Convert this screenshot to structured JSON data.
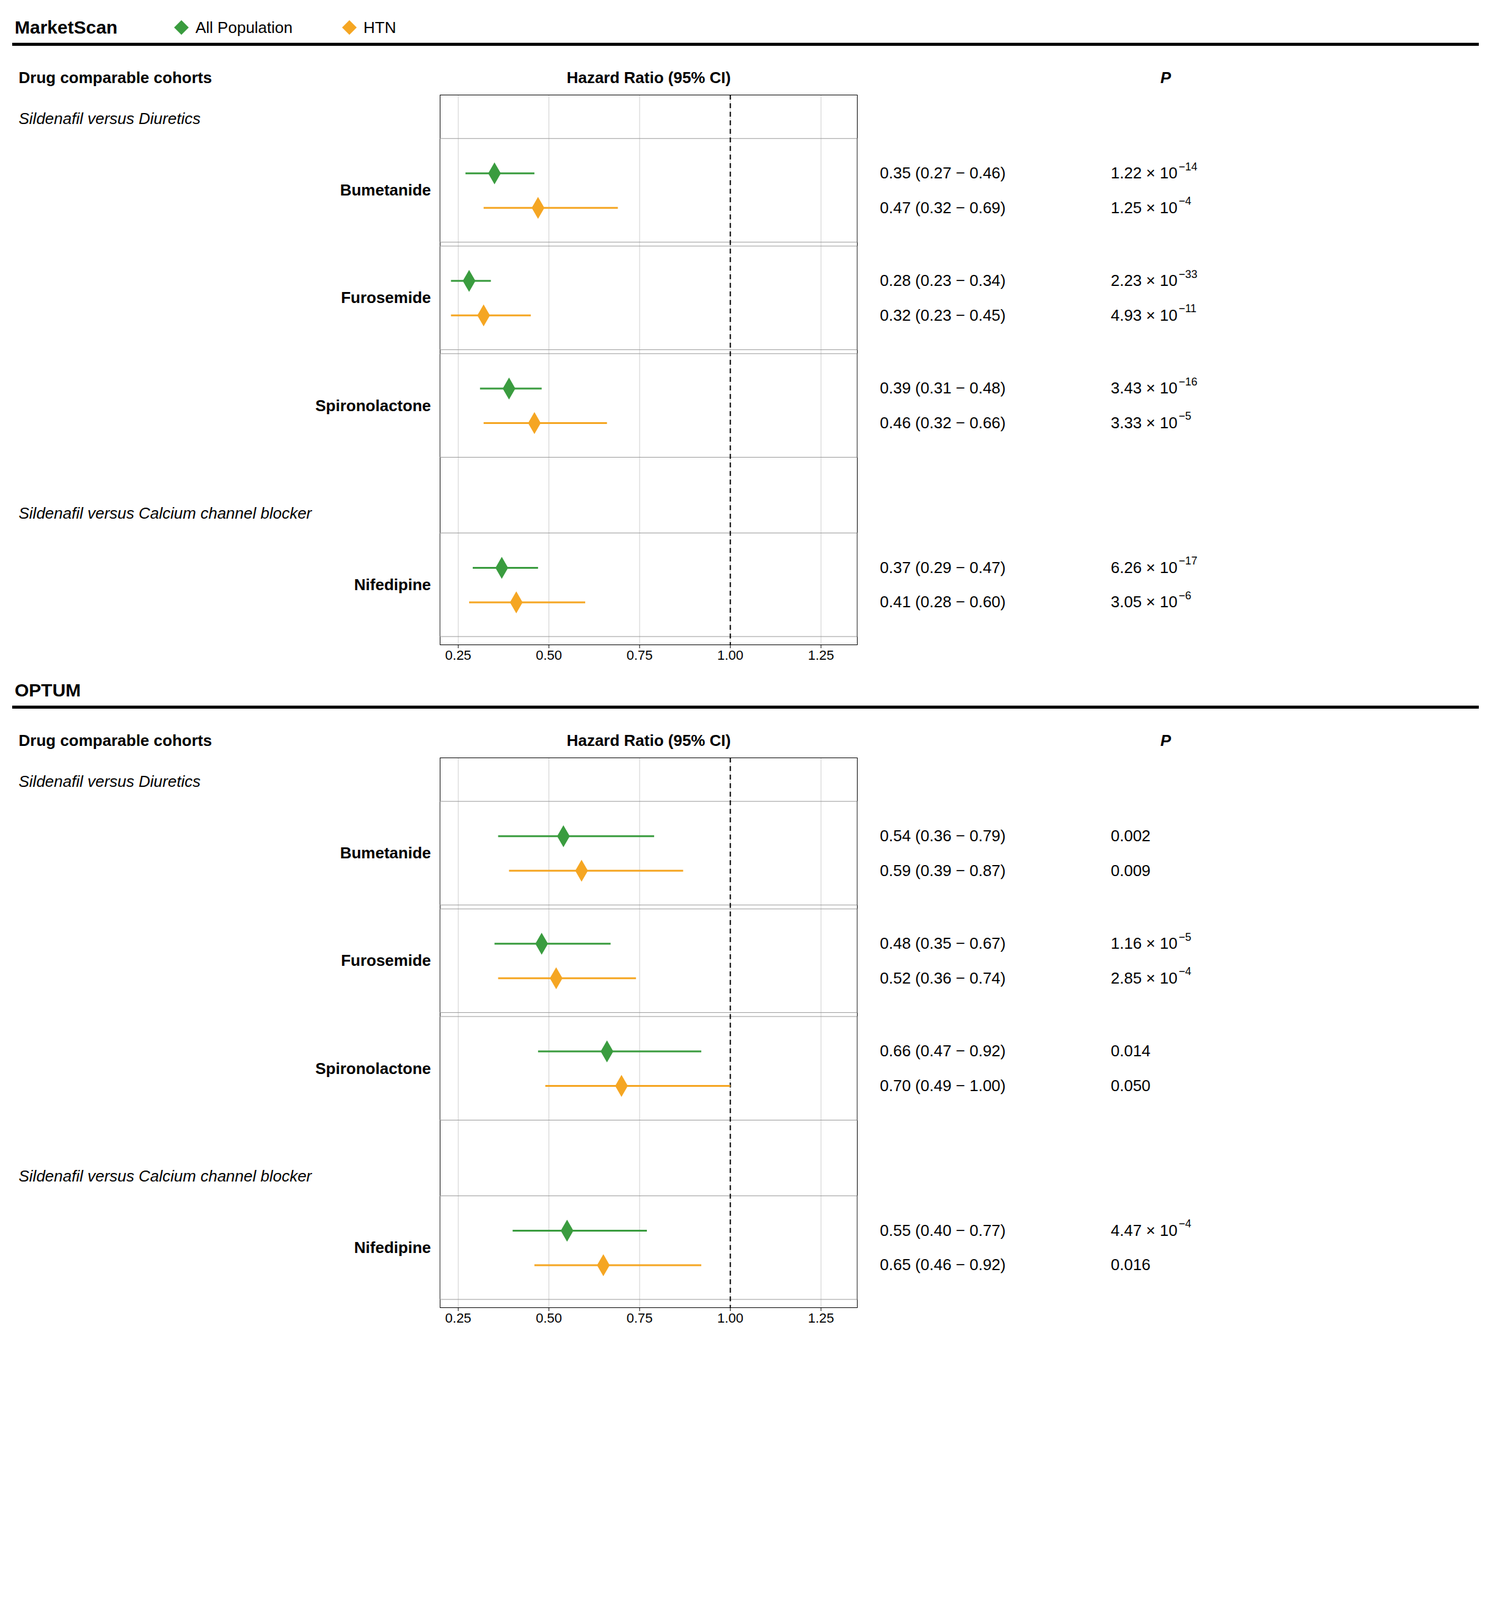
{
  "chart_data": [
    {
      "type": "forest",
      "title": "MarketScan",
      "legend": "top",
      "row_header": "Drug comparable cohorts",
      "xlabel": "Hazard Ratio (95% CI)",
      "p_header": "P",
      "xlim": [
        0.2,
        1.35
      ],
      "xticks": [
        0.25,
        {
          "value": 0.5,
          "label": "0.50"
        },
        0.75,
        {
          "value": 1.0,
          "label": "1.00"
        },
        1.25
      ],
      "grid": true,
      "reference_line": 1.0,
      "groups": [
        {
          "title": "Sildenafil versus Diuretics",
          "categories": [
            "Bumetanide",
            "Furosemide",
            "Spironolactone"
          ]
        },
        {
          "title": "Sildenafil versus Calcium channel blocker",
          "categories": [
            "Nifedipine"
          ]
        }
      ],
      "series": [
        {
          "name": "All Population",
          "color": "#3a9c3f",
          "marker": "diamond",
          "values": [
            0.35,
            0.28,
            0.39,
            0.37
          ],
          "ci_low": [
            0.27,
            0.23,
            0.31,
            0.29
          ],
          "ci_high": [
            0.46,
            0.34,
            0.48,
            0.47
          ],
          "value_labels": [
            "0.35 (0.27 − 0.46)",
            "0.28 (0.23 − 0.34)",
            "0.39 (0.31 − 0.48)",
            "0.37 (0.29 − 0.47)"
          ],
          "p_labels": [
            "1.22 × 10",
            "2.23 × 10",
            "3.43 × 10",
            "6.26 × 10"
          ],
          "p_exponents": [
            "−14",
            "−33",
            "−16",
            "−17"
          ]
        },
        {
          "name": "HTN",
          "color": "#f5a623",
          "marker": "diamond",
          "values": [
            0.47,
            0.32,
            0.46,
            0.41
          ],
          "ci_low": [
            0.32,
            0.23,
            0.32,
            0.28
          ],
          "ci_high": [
            0.69,
            0.45,
            0.66,
            0.6
          ],
          "value_labels": [
            "0.47 (0.32 − 0.69)",
            "0.32 (0.23 − 0.45)",
            "0.46 (0.32 − 0.66)",
            "0.41 (0.28 − 0.60)"
          ],
          "p_labels": [
            "1.25 × 10",
            "4.93 × 10",
            "3.33 × 10",
            "3.05 × 10"
          ],
          "p_exponents": [
            "−4",
            "−11",
            "−5",
            "−6"
          ]
        }
      ]
    },
    {
      "type": "forest",
      "title": "OPTUM",
      "row_header": "Drug comparable cohorts",
      "xlabel": "Hazard Ratio (95% CI)",
      "p_header": "P",
      "xlim": [
        0.2,
        1.35
      ],
      "xticks": [
        0.25,
        {
          "value": 0.5,
          "label": "0.50"
        },
        0.75,
        {
          "value": 1.0,
          "label": "1.00"
        },
        1.25
      ],
      "grid": true,
      "reference_line": 1.0,
      "groups": [
        {
          "title": "Sildenafil versus Diuretics",
          "categories": [
            "Bumetanide",
            "Furosemide",
            "Spironolactone"
          ]
        },
        {
          "title": "Sildenafil versus Calcium channel blocker",
          "categories": [
            "Nifedipine"
          ]
        }
      ],
      "series": [
        {
          "name": "All Population",
          "color": "#3a9c3f",
          "marker": "diamond",
          "values": [
            0.54,
            0.48,
            0.66,
            0.55
          ],
          "ci_low": [
            0.36,
            0.35,
            0.47,
            0.4
          ],
          "ci_high": [
            0.79,
            0.67,
            0.92,
            0.77
          ],
          "value_labels": [
            "0.54 (0.36 − 0.79)",
            "0.48 (0.35 − 0.67)",
            "0.66 (0.47 − 0.92)",
            "0.55 (0.40 − 0.77)"
          ],
          "p_labels": [
            "0.002",
            "1.16 × 10",
            "0.014",
            "4.47 × 10"
          ],
          "p_exponents": [
            null,
            "−5",
            null,
            "−4"
          ]
        },
        {
          "name": "HTN",
          "color": "#f5a623",
          "marker": "diamond",
          "values": [
            0.59,
            0.52,
            0.7,
            0.65
          ],
          "ci_low": [
            0.39,
            0.36,
            0.49,
            0.46
          ],
          "ci_high": [
            0.87,
            0.74,
            1.0,
            0.92
          ],
          "value_labels": [
            "0.59 (0.39 − 0.87)",
            "0.52 (0.36 − 0.74)",
            "0.70 (0.49 − 1.00)",
            "0.65 (0.46 − 0.92)"
          ],
          "p_labels": [
            "0.009",
            "2.85 × 10",
            "0.050",
            "0.016"
          ],
          "p_exponents": [
            null,
            "−4",
            null,
            null
          ]
        }
      ]
    }
  ]
}
